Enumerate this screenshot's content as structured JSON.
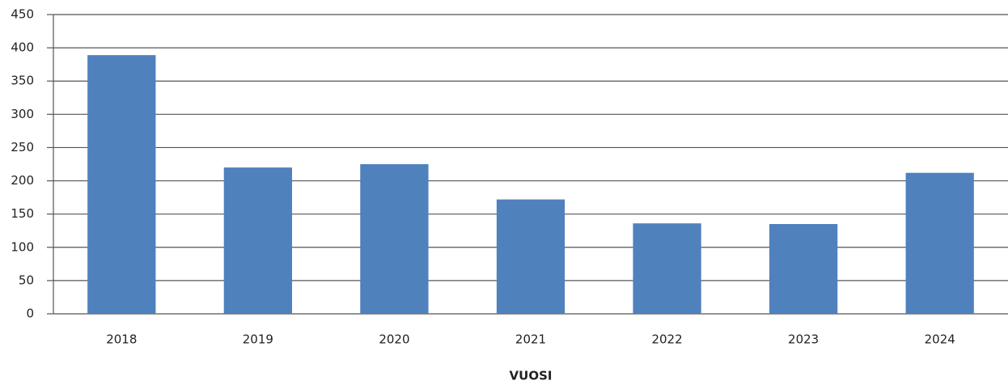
{
  "chart_data": {
    "type": "bar",
    "x_label": "VUOSI",
    "categories": [
      "2018",
      "2019",
      "2020",
      "2021",
      "2022",
      "2023",
      "2024"
    ],
    "values": [
      389,
      220,
      225,
      172,
      136,
      135,
      212
    ],
    "color": "#4f81bd",
    "ylim": [
      0,
      450
    ],
    "yticks": [
      0,
      50,
      100,
      150,
      200,
      250,
      300,
      350,
      400,
      450
    ],
    "grid": true
  }
}
